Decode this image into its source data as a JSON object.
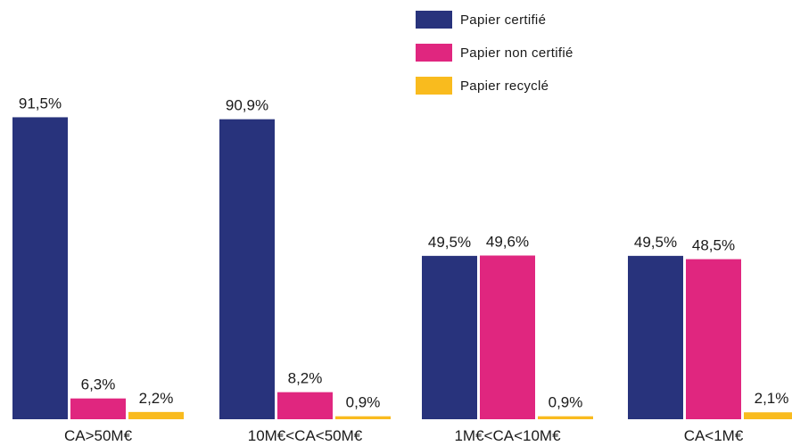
{
  "chart_data": {
    "type": "bar",
    "title": "",
    "xlabel": "",
    "ylabel": "",
    "ylim": [
      0,
      100
    ],
    "grid": false,
    "legend_position": "top-right",
    "categories": [
      "CA>50M€",
      "10M€<CA<50M€",
      "1M€<CA<10M€",
      "CA<1M€"
    ],
    "series": [
      {
        "name": "Papier certifié",
        "color": "#28337c",
        "values": [
          91.5,
          90.9,
          49.5,
          49.5
        ],
        "labels": [
          "91,5%",
          "90,9%",
          "49,5%",
          "49,5%"
        ]
      },
      {
        "name": "Papier non certifié",
        "color": "#e0267f",
        "values": [
          6.3,
          8.2,
          49.6,
          48.5
        ],
        "labels": [
          "6,3%",
          "8,2%",
          "49,6%",
          "48,5%"
        ]
      },
      {
        "name": "Papier recyclé",
        "color": "#f9bb1e",
        "values": [
          2.2,
          0.9,
          0.9,
          2.1
        ],
        "labels": [
          "2,2%",
          "0,9%",
          "0,9%",
          "2,1%"
        ]
      }
    ]
  }
}
